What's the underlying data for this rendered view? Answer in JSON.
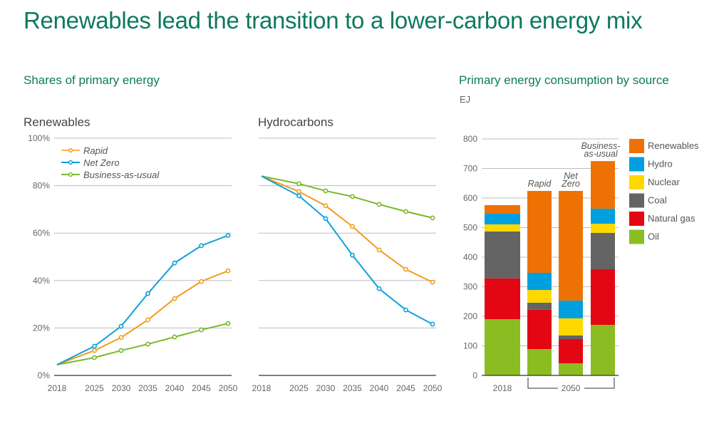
{
  "header": {
    "title": "Renewables lead the transition to a lower-carbon energy mix",
    "left_section_title": "Shares of primary energy",
    "right_section_title": "Primary energy consumption by source",
    "right_unit": "EJ"
  },
  "colors": {
    "rapid": "#f39c1e",
    "net_zero": "#0da0dc",
    "bau": "#78b928",
    "renewables": "#ee7203",
    "hydro": "#009fe0",
    "nuclear": "#ffd800",
    "coal": "#646464",
    "natural_gas": "#e30613",
    "oil": "#8bbd23",
    "title": "#0c7a5c"
  },
  "chart_data": [
    {
      "type": "line",
      "title": "Renewables",
      "x": [
        2018,
        2025,
        2030,
        2035,
        2040,
        2045,
        2050
      ],
      "x_tick_labels": [
        "2018",
        "2025",
        "2030",
        "2035",
        "2040",
        "2045",
        "2050"
      ],
      "y_tick_labels": [
        "0%",
        "20%",
        "40%",
        "60%",
        "80%",
        "100%"
      ],
      "y_ticks": [
        0,
        20,
        40,
        60,
        80,
        100
      ],
      "ylim": [
        0,
        100
      ],
      "ylabel": "",
      "xlabel": "",
      "grid": true,
      "legend_position": "top-left",
      "series": [
        {
          "name": "Rapid",
          "key": "rapid",
          "values": [
            4.5,
            10.5,
            16.0,
            23.4,
            32.4,
            39.6,
            44.1
          ]
        },
        {
          "name": "Net Zero",
          "key": "net_zero",
          "values": [
            4.5,
            12.3,
            20.7,
            34.5,
            47.4,
            54.7,
            59.0
          ]
        },
        {
          "name": "Business-as-usual",
          "key": "bau",
          "values": [
            4.5,
            7.5,
            10.5,
            13.2,
            16.2,
            19.2,
            21.9
          ]
        }
      ]
    },
    {
      "type": "line",
      "title": "Hydrocarbons",
      "x": [
        2018,
        2025,
        2030,
        2035,
        2040,
        2045,
        2050
      ],
      "x_tick_labels": [
        "2018",
        "2025",
        "2030",
        "2035",
        "2040",
        "2045",
        "2050"
      ],
      "ylim": [
        0,
        100
      ],
      "grid": true,
      "series": [
        {
          "name": "Rapid",
          "key": "rapid",
          "values": [
            84.0,
            77.5,
            71.5,
            62.8,
            52.9,
            44.7,
            39.3
          ]
        },
        {
          "name": "Net Zero",
          "key": "net_zero",
          "values": [
            84.0,
            75.7,
            66.1,
            50.7,
            36.6,
            27.6,
            21.6
          ]
        },
        {
          "name": "Business-as-usual",
          "key": "bau",
          "values": [
            84.0,
            80.8,
            77.8,
            75.4,
            72.1,
            69.1,
            66.4
          ]
        }
      ]
    },
    {
      "type": "bar",
      "stacked": true,
      "title": "Primary energy consumption by source",
      "ylabel": "EJ",
      "ylim": [
        0,
        800
      ],
      "y_ticks": [
        0,
        100,
        200,
        300,
        400,
        500,
        600,
        700,
        800
      ],
      "grid": true,
      "legend_position": "right",
      "categories": [
        "2018",
        "Rapid",
        "Net Zero",
        "Business-as-usual"
      ],
      "category_labels": [
        [
          ""
        ],
        [
          "Rapid"
        ],
        [
          "Net",
          "Zero"
        ],
        [
          "Business-",
          "as-usual"
        ]
      ],
      "x_group_labels": {
        "single": "2018",
        "group": "2050"
      },
      "series": [
        {
          "name": "Oil",
          "key": "oil",
          "values": [
            190,
            89,
            41,
            171
          ]
        },
        {
          "name": "Natural gas",
          "key": "natural_gas",
          "values": [
            138,
            133,
            82,
            188
          ]
        },
        {
          "name": "Coal",
          "key": "coal",
          "values": [
            159,
            24,
            12,
            123
          ]
        },
        {
          "name": "Nuclear",
          "key": "nuclear",
          "values": [
            24,
            43,
            58,
            31
          ]
        },
        {
          "name": "Hydro",
          "key": "hydro",
          "values": [
            36,
            58,
            60,
            51
          ]
        },
        {
          "name": "Renewables",
          "key": "renewables",
          "values": [
            29,
            277,
            371,
            161
          ]
        }
      ],
      "legend_order": [
        "Renewables",
        "Hydro",
        "Nuclear",
        "Coal",
        "Natural gas",
        "Oil"
      ]
    }
  ]
}
